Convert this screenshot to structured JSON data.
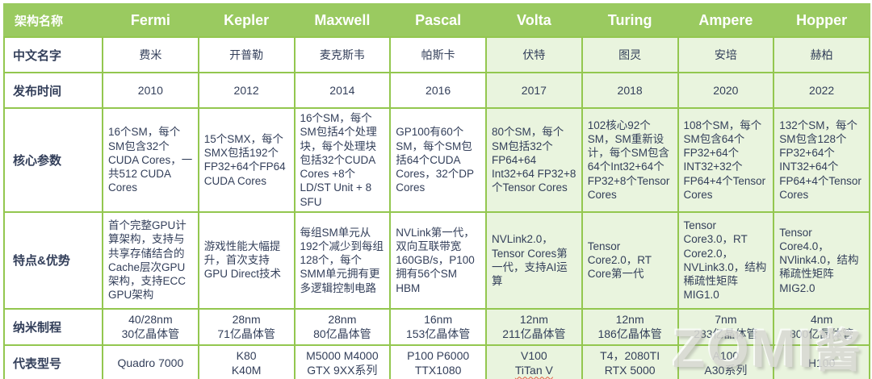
{
  "colors": {
    "header_green": "#9aca60",
    "grid_green": "#93c74f",
    "tint_green": "#e9f4de",
    "text_navy": "#333f5a",
    "watermark_gray": "#d9d9d3",
    "misspell_underline_red": "#e4593f"
  },
  "watermark": {
    "latin": "ZOMI",
    "cjk": "酱"
  },
  "table": {
    "corner_label": "架构名称",
    "architectures": [
      "Fermi",
      "Kepler",
      "Maxwell",
      "Pascal",
      "Volta",
      "Turing",
      "Ampere",
      "Hopper"
    ],
    "row_labels": {
      "cn_name": "中文名字",
      "release": "发布时间",
      "core": "核心参数",
      "features": "特点&优势",
      "process": "纳米制程",
      "models": "代表型号"
    },
    "cn_names": [
      "费米",
      "开普勒",
      "麦克斯韦",
      "帕斯卡",
      "伏特",
      "图灵",
      "安培",
      "赫柏"
    ],
    "release_years": [
      "2010",
      "2012",
      "2014",
      "2016",
      "2017",
      "2018",
      "2020",
      "2022"
    ],
    "core_params": [
      "16个SM，每个SM包含32个CUDA Cores，一共512 CUDA Cores",
      "15个SMX，每个SMX包括192个FP32+64个FP64 CUDA Cores",
      "16个SM，每个SM包括4个处理块，每个处理块包括32个CUDA Cores +8个LD/ST Unit + 8 SFU",
      "GP100有60个SM，每个SM包括64个CUDA Cores，32个DP Cores",
      "80个SM，每个SM包括32个FP64+64 Int32+64 FP32+8个Tensor Cores",
      "102核心92个SM，SM重新设计，每个SM包含64个Int32+64个FP32+8个Tensor Cores",
      "108个SM，每个SM包含64个FP32+64个INT32+32个FP64+4个Tensor Cores",
      "132个SM，每个SM包含128个FP32+64个INT32+64个FP64+4个Tensor Cores"
    ],
    "features": [
      "首个完整GPU计算架构，支持与共享存储结合的Cache层次GPU架构，支持ECC GPU架构",
      "游戏性能大幅提升，首次支持GPU Direct技术",
      "每组SM单元从192个减少到每组128个，每个SMM单元拥有更多逻辑控制电路",
      "NVLink第一代，双向互联带宽160GB/s，P100拥有56个SM HBM",
      "NVLink2.0，Tensor Cores第一代，支持AI运算",
      "Tensor Core2.0，RT Core第一代",
      "Tensor Core3.0，RT Core2.0，NVLink3.0，结构稀疏性矩阵MIG1.0",
      "Tensor Core4.0，NVlink4.0，结构稀疏性矩阵MIG2.0"
    ],
    "process": [
      "40/28nm\n30亿晶体管",
      "28nm\n71亿晶体管",
      "28nm\n80亿晶体管",
      "16nm\n153亿晶体管",
      "12nm\n211亿晶体管",
      "12nm\n186亿晶体管",
      "7nm\n283亿晶体管",
      "4nm\n800亿晶体管"
    ],
    "models": [
      "Quadro 7000",
      "K80\nK40M",
      "M5000 M4000\nGTX 9XX系列",
      "P100 P6000\nTTX1080",
      {
        "line1": "V100",
        "line2": "TiTan V"
      },
      "T4，2080TI\nRTX 5000",
      "A100\nA30系列",
      "H100"
    ]
  }
}
